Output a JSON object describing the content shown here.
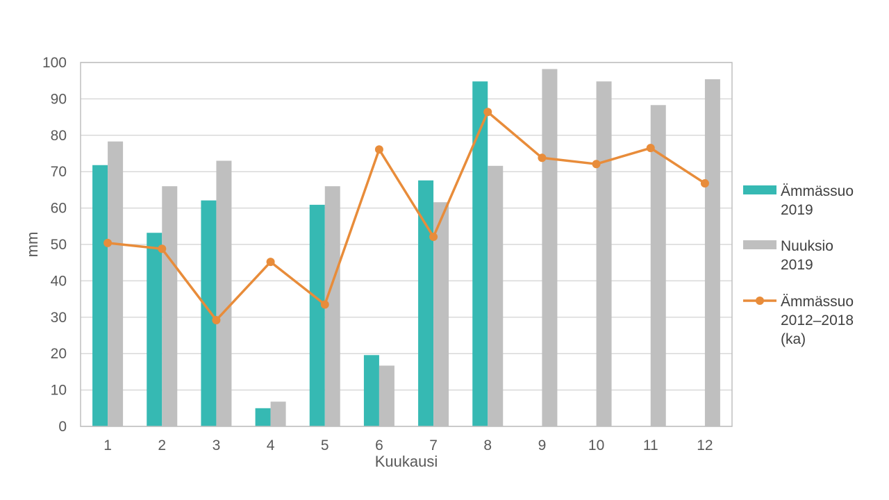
{
  "chart_data": {
    "type": "bar",
    "xlabel": "Kuukausi",
    "ylabel": "mm",
    "ylim": [
      0,
      100
    ],
    "yticks": [
      "0",
      "10",
      "20",
      "30",
      "40",
      "50",
      "60",
      "70",
      "80",
      "90",
      "100"
    ],
    "categories": [
      "1",
      "2",
      "3",
      "4",
      "5",
      "6",
      "7",
      "8",
      "9",
      "10",
      "11",
      "12"
    ],
    "grid": true,
    "legend_position": "right",
    "series": [
      {
        "name": [
          "Ämmässuo",
          "2019"
        ],
        "type": "bar",
        "color": "#36b9b3",
        "values": [
          71.8,
          53.2,
          62.1,
          5.0,
          60.9,
          19.6,
          67.6,
          94.8,
          null,
          null,
          null,
          null
        ]
      },
      {
        "name": [
          "Nuuksio",
          "2019"
        ],
        "type": "bar",
        "color": "#bfbfbf",
        "values": [
          78.3,
          66.0,
          73.0,
          6.8,
          66.0,
          16.7,
          61.6,
          71.6,
          98.2,
          94.8,
          88.3,
          95.4
        ]
      },
      {
        "name": [
          "Ämmässuo",
          "2012–2018",
          "(ka)"
        ],
        "type": "line",
        "color": "#e88c3a",
        "values": [
          50.4,
          48.8,
          29.2,
          45.2,
          33.5,
          76.1,
          52.1,
          86.4,
          73.8,
          72.1,
          76.5,
          66.8
        ]
      }
    ]
  }
}
